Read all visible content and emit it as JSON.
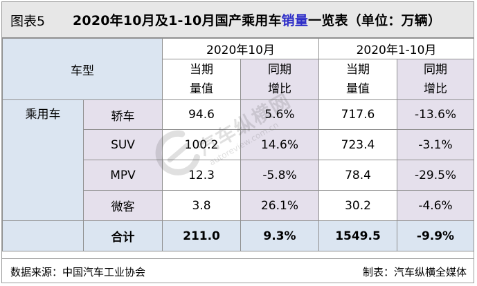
{
  "figure_label": "图表5",
  "title": {
    "before": "2020年10月及1-10月国产乘用车",
    "highlight": "销量",
    "after": "一览表（单位：万辆）"
  },
  "header": {
    "model_type": "车型",
    "period_month": "2020年10月",
    "period_ytd": "2020年1-10月",
    "col_volume_line1": "当期",
    "col_volume_line2": "量值",
    "col_yoy_line1": "同期",
    "col_yoy_line2": "增比"
  },
  "category": "乘用车",
  "rows": [
    {
      "type": "轿车",
      "oct_volume": "94.6",
      "oct_yoy": "5.6%",
      "ytd_volume": "717.6",
      "ytd_yoy": "-13.6%"
    },
    {
      "type": "SUV",
      "oct_volume": "100.2",
      "oct_yoy": "14.6%",
      "ytd_volume": "723.4",
      "ytd_yoy": "-3.1%"
    },
    {
      "type": "MPV",
      "oct_volume": "12.3",
      "oct_yoy": "-5.8%",
      "ytd_volume": "78.4",
      "ytd_yoy": "-29.5%"
    },
    {
      "type": "微客",
      "oct_volume": "3.8",
      "oct_yoy": "26.1%",
      "ytd_volume": "30.2",
      "ytd_yoy": "-4.6%"
    }
  ],
  "total": {
    "label": "合计",
    "oct_volume": "211.0",
    "oct_yoy": "9.3%",
    "ytd_volume": "1549.5",
    "ytd_yoy": "-9.9%"
  },
  "footer": {
    "source": "数据来源：中国汽车工业协会",
    "maker": "制表：汽车纵横全媒体"
  },
  "watermark": {
    "text": "汽车纵横网",
    "sub": "autoreview.com.cn"
  },
  "colors": {
    "title_highlight": "#2e2ec8",
    "negative": "#e31b1b",
    "header_bg": "#e7e7e7",
    "blue_cell": "#dbe5f1",
    "purple_cell": "#e5e0ec"
  }
}
